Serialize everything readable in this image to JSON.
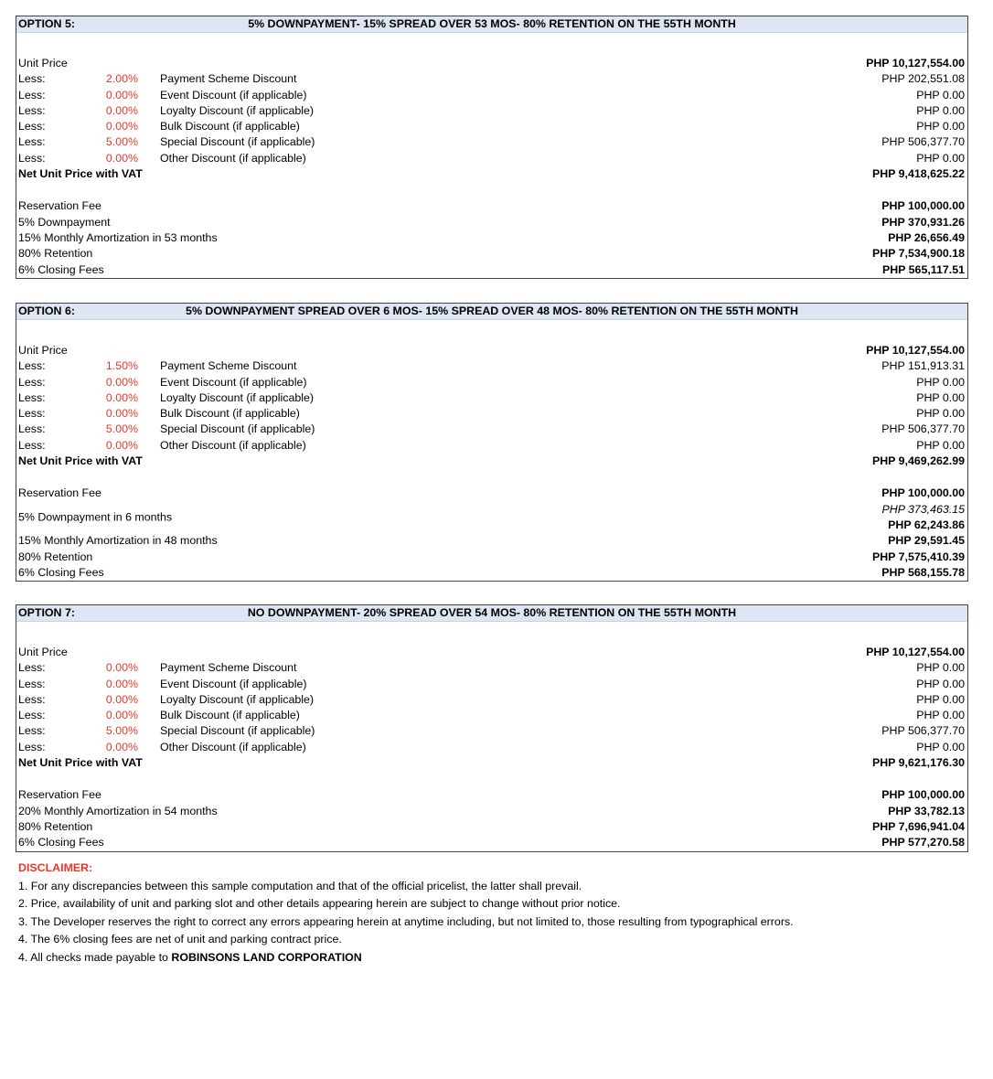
{
  "options": [
    {
      "title": "OPTION 5:",
      "scheme": "5% DOWNPAYMENT- 15% SPREAD OVER 53 MOS- 80% RETENTION ON THE 55TH MONTH",
      "unit_price_label": "Unit Price",
      "unit_price": "PHP 10,127,554.00",
      "discounts": [
        {
          "label": "Less:",
          "pct": "2.00%",
          "desc": "Payment Scheme Discount",
          "value": "PHP 202,551.08"
        },
        {
          "label": "Less:",
          "pct": "0.00%",
          "desc": "Event Discount (if applicable)",
          "value": "PHP 0.00"
        },
        {
          "label": "Less:",
          "pct": "0.00%",
          "desc": "Loyalty Discount (if applicable)",
          "value": "PHP 0.00"
        },
        {
          "label": "Less:",
          "pct": "0.00%",
          "desc": "Bulk Discount (if applicable)",
          "value": "PHP 0.00"
        },
        {
          "label": "Less:",
          "pct": "5.00%",
          "desc": "Special Discount (if applicable)",
          "value": "PHP 506,377.70"
        },
        {
          "label": "Less:",
          "pct": "0.00%",
          "desc": "Other Discount (if applicable)",
          "value": "PHP 0.00"
        }
      ],
      "net_label": "Net Unit Price with VAT",
      "net_value": "PHP 9,418,625.22",
      "payments": [
        {
          "label": "Reservation Fee",
          "value": "PHP 100,000.00"
        },
        {
          "label": "5% Downpayment",
          "value": "PHP 370,931.26"
        },
        {
          "label": "15% Monthly Amortization in 53 months",
          "value": "PHP 26,656.49"
        },
        {
          "label": "80% Retention",
          "value": "PHP 7,534,900.18"
        },
        {
          "label": "6% Closing Fees",
          "value": "PHP 565,117.51"
        }
      ]
    },
    {
      "title": "OPTION 6:",
      "scheme": "5% DOWNPAYMENT SPREAD OVER 6 MOS- 15% SPREAD OVER 48 MOS- 80% RETENTION ON THE 55TH MONTH",
      "unit_price_label": "Unit Price",
      "unit_price": "PHP 10,127,554.00",
      "discounts": [
        {
          "label": "Less:",
          "pct": "1.50%",
          "desc": "Payment Scheme Discount",
          "value": "PHP 151,913.31"
        },
        {
          "label": "Less:",
          "pct": "0.00%",
          "desc": "Event Discount (if applicable)",
          "value": "PHP 0.00"
        },
        {
          "label": "Less:",
          "pct": "0.00%",
          "desc": "Loyalty Discount (if applicable)",
          "value": "PHP 0.00"
        },
        {
          "label": "Less:",
          "pct": "0.00%",
          "desc": "Bulk Discount (if applicable)",
          "value": "PHP 0.00"
        },
        {
          "label": "Less:",
          "pct": "5.00%",
          "desc": "Special Discount (if applicable)",
          "value": "PHP 506,377.70"
        },
        {
          "label": "Less:",
          "pct": "0.00%",
          "desc": "Other Discount (if applicable)",
          "value": "PHP 0.00"
        }
      ],
      "net_label": "Net Unit Price with VAT",
      "net_value": "PHP 9,469,262.99",
      "payments": [
        {
          "label": "Reservation Fee",
          "value": "PHP 100,000.00"
        },
        {
          "label": "5% Downpayment in 6 months",
          "total": "PHP 373,463.15",
          "value": "PHP 62,243.86"
        },
        {
          "label": "15% Monthly Amortization in 48 months",
          "value": "PHP 29,591.45"
        },
        {
          "label": "80% Retention",
          "value": "PHP 7,575,410.39"
        },
        {
          "label": "6% Closing Fees",
          "value": "PHP 568,155.78"
        }
      ]
    },
    {
      "title": "OPTION 7:",
      "scheme": "NO DOWNPAYMENT- 20% SPREAD OVER 54 MOS- 80% RETENTION ON THE 55TH MONTH",
      "unit_price_label": "Unit Price",
      "unit_price": "PHP 10,127,554.00",
      "discounts": [
        {
          "label": "Less:",
          "pct": "0.00%",
          "desc": "Payment Scheme Discount",
          "value": "PHP 0.00"
        },
        {
          "label": "Less:",
          "pct": "0.00%",
          "desc": "Event Discount (if applicable)",
          "value": "PHP 0.00"
        },
        {
          "label": "Less:",
          "pct": "0.00%",
          "desc": "Loyalty Discount (if applicable)",
          "value": "PHP 0.00"
        },
        {
          "label": "Less:",
          "pct": "0.00%",
          "desc": "Bulk Discount (if applicable)",
          "value": "PHP 0.00"
        },
        {
          "label": "Less:",
          "pct": "5.00%",
          "desc": "Special Discount (if applicable)",
          "value": "PHP 506,377.70"
        },
        {
          "label": "Less:",
          "pct": "0.00%",
          "desc": "Other Discount (if applicable)",
          "value": "PHP 0.00"
        }
      ],
      "net_label": "Net Unit Price with VAT",
      "net_value": "PHP 9,621,176.30",
      "payments": [
        {
          "label": "Reservation Fee",
          "value": "PHP 100,000.00"
        },
        {
          "label": "20% Monthly Amortization in 54 months",
          "value": "PHP 33,782.13"
        },
        {
          "label": "80% Retention",
          "value": "PHP 7,696,941.04"
        },
        {
          "label": "6% Closing Fees",
          "value": "PHP 577,270.58"
        }
      ]
    }
  ],
  "disclaimer": {
    "heading": "DISCLAIMER:",
    "items": [
      "1. For any discrepancies between this sample computation and that of the official pricelist, the latter shall prevail.",
      "2. Price, availability of unit and parking slot and other details appearing herein are subject to change without prior notice.",
      "3. The Developer reserves the right to correct any errors appearing herein at anytime including, but not limited to, those resulting from typographical errors.",
      "4. The 6% closing fees are net of unit and parking contract price."
    ],
    "last_prefix": "4. All checks made payable to ",
    "last_bold": "ROBINSONS LAND CORPORATION"
  },
  "colors": {
    "header_bg": "#dde6f2",
    "percent": "#e8362a",
    "disclaimer_heading": "#e8362a"
  }
}
